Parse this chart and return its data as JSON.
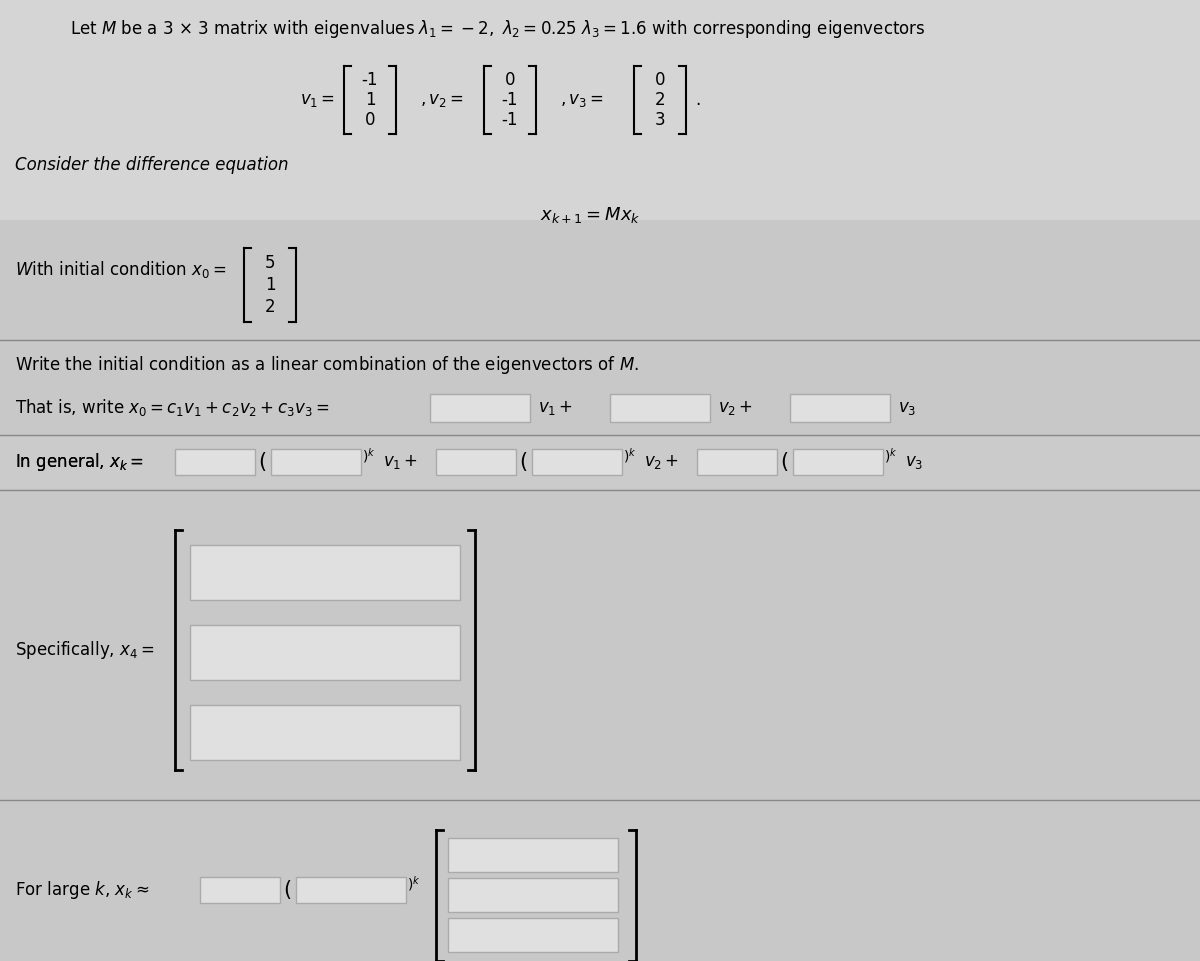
{
  "bg_color": "#c8c8c8",
  "top_bar_color": "#c0c0c0",
  "section_bg": "#d0d0d0",
  "white_area": "#e8e8e8",
  "input_box_color": "#e0e0e0",
  "input_box_border": "#aaaaaa",
  "line_color": "#888888",
  "text_color": "#111111",
  "v1": [
    "-1",
    "1",
    "0"
  ],
  "v2": [
    "0",
    "-1",
    "-1"
  ],
  "v3": [
    "0",
    "2",
    "3"
  ],
  "x0": [
    "5",
    "1",
    "2"
  ],
  "font_size_main": 12,
  "fig_width": 12.0,
  "fig_height": 9.61,
  "dpi": 100
}
